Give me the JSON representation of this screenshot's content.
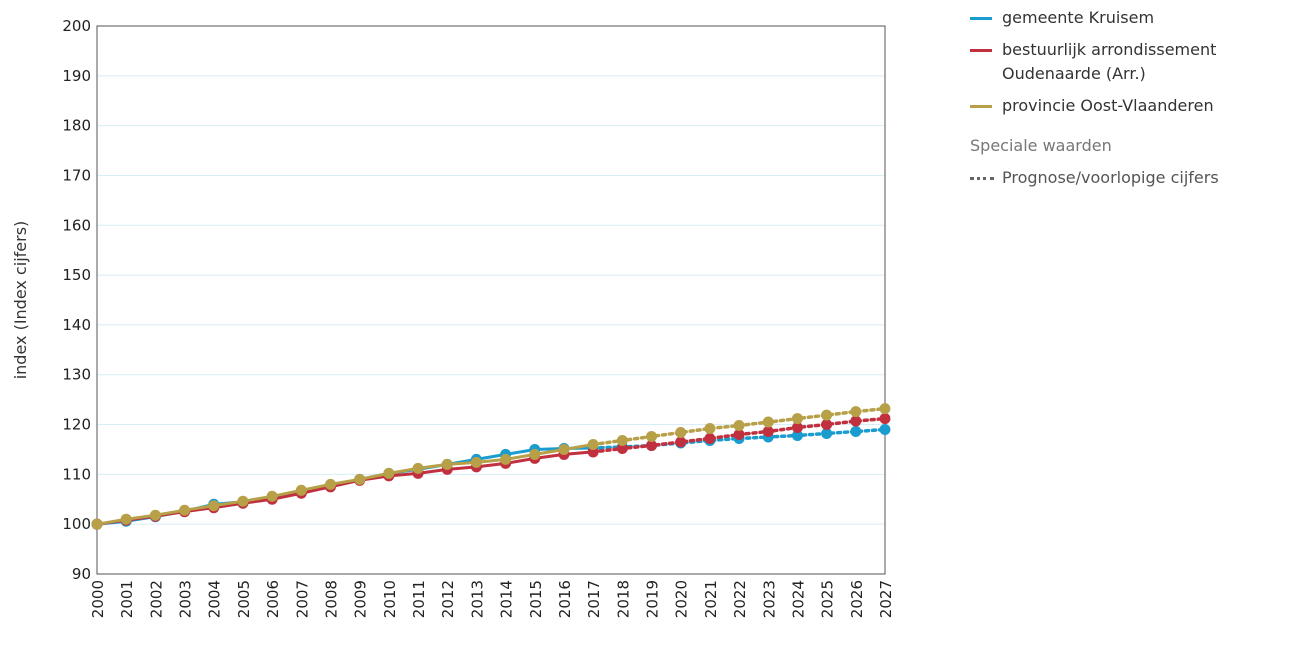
{
  "chart_data": {
    "type": "line",
    "title": "",
    "ylabel": "index (Index cijfers)",
    "xlabel": "",
    "ylim": [
      90,
      200
    ],
    "yticks": [
      90,
      100,
      110,
      120,
      130,
      140,
      150,
      160,
      170,
      180,
      190,
      200
    ],
    "grid": true,
    "legend_position": "right",
    "categories": [
      "2000",
      "2001",
      "2002",
      "2003",
      "2004",
      "2005",
      "2006",
      "2007",
      "2008",
      "2009",
      "2010",
      "2011",
      "2012",
      "2013",
      "2014",
      "2015",
      "2016",
      "2017",
      "2018",
      "2019",
      "2020",
      "2021",
      "2022",
      "2023",
      "2024",
      "2025",
      "2026",
      "2027"
    ],
    "series": [
      {
        "name": "gemeente Kruisem",
        "color": "#1a9ccf",
        "values": [
          100,
          100.6,
          101.5,
          102.6,
          104.0,
          104.5,
          105.3,
          106.4,
          107.7,
          109.0,
          110.2,
          111.0,
          112.0,
          113.0,
          114.0,
          115.0,
          115.2,
          115.3,
          115.5,
          115.8,
          116.3,
          116.8,
          117.2,
          117.5,
          117.8,
          118.2,
          118.6,
          119.0
        ]
      },
      {
        "name": "bestuurlijk arrondissement\nOudenaarde (Arr.)",
        "color": "#c1303f",
        "values": [
          100,
          100.8,
          101.6,
          102.5,
          103.3,
          104.2,
          105.0,
          106.2,
          107.5,
          108.8,
          109.7,
          110.2,
          111.0,
          111.5,
          112.2,
          113.2,
          114.0,
          114.5,
          115.2,
          115.8,
          116.5,
          117.2,
          118.0,
          118.6,
          119.4,
          120.0,
          120.7,
          121.2
        ]
      },
      {
        "name": "provincie Oost-Vlaanderen",
        "color": "#b7a047",
        "values": [
          100,
          101.0,
          101.8,
          102.8,
          103.7,
          104.6,
          105.6,
          106.8,
          108.0,
          109.0,
          110.2,
          111.2,
          112.0,
          112.4,
          113.0,
          114.0,
          115.0,
          116.0,
          116.8,
          117.6,
          118.4,
          119.2,
          119.8,
          120.5,
          121.2,
          121.9,
          122.6,
          123.2
        ]
      }
    ],
    "projection_start_index": 17
  },
  "legend": {
    "special_title": "Speciale waarden",
    "special_item": "Prognose/voorlopige cijfers"
  }
}
